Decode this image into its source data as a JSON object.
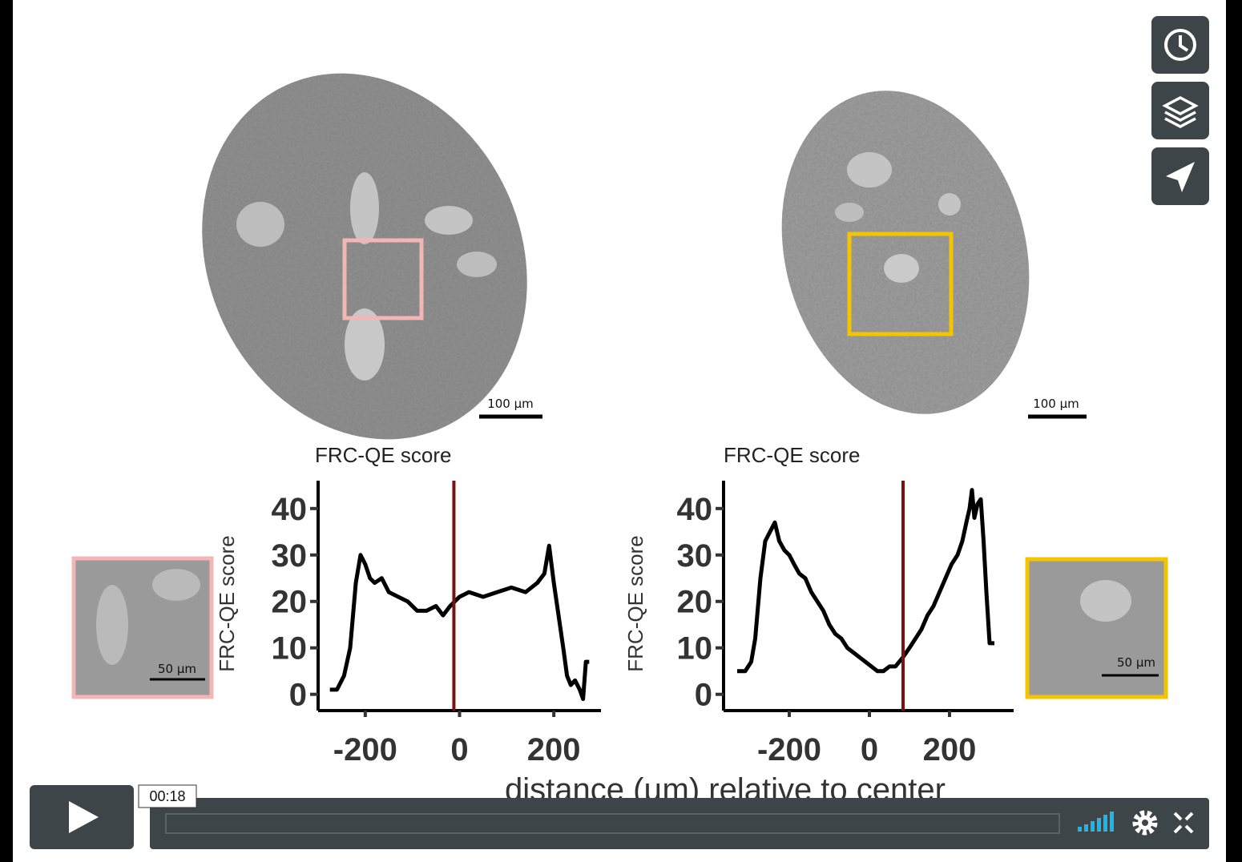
{
  "video": {
    "images": [
      {
        "scale_bar": "100 µm"
      },
      {
        "scale_bar": "100 µm"
      }
    ],
    "insets": [
      {
        "scale_bar": "50 µm"
      },
      {
        "scale_bar": "50 µm"
      }
    ],
    "x_label": "distance (µm) relative to center",
    "time": "00:18"
  },
  "chart_data": [
    {
      "type": "line",
      "title": "FRC-QE score",
      "y_label": "FRC-QE score",
      "x": [
        -275,
        -260,
        -245,
        -232,
        -220,
        -210,
        -200,
        -190,
        -180,
        -165,
        -150,
        -130,
        -110,
        -90,
        -70,
        -50,
        -35,
        -20,
        -10,
        0,
        20,
        50,
        80,
        110,
        140,
        165,
        180,
        190,
        200,
        210,
        220,
        228,
        236,
        245,
        255,
        262,
        268,
        275
      ],
      "series": [
        {
          "color": "#000000",
          "values": [
            1,
            1,
            4,
            10,
            24,
            30,
            28,
            25,
            24,
            25,
            22,
            21,
            20,
            18,
            18,
            19,
            17,
            19,
            20,
            21,
            22,
            21,
            22,
            23,
            22,
            24,
            26,
            32,
            24,
            17,
            10,
            4,
            2,
            3,
            1,
            -1,
            7,
            7
          ]
        }
      ],
      "vline": {
        "x": -12,
        "color": "#7a1010"
      },
      "xlim": [
        -300,
        300
      ],
      "ylim": [
        -3.5,
        46
      ],
      "xticks": [
        -200,
        0,
        200
      ],
      "yticks": [
        0,
        10,
        20,
        30,
        40
      ]
    },
    {
      "type": "line",
      "title": "FRC-QE score",
      "y_label": "FRC-QE score",
      "x": [
        -330,
        -310,
        -295,
        -285,
        -272,
        -260,
        -248,
        -236,
        -225,
        -212,
        -200,
        -188,
        -175,
        -160,
        -145,
        -130,
        -115,
        -100,
        -85,
        -70,
        -55,
        -40,
        -25,
        -10,
        5,
        20,
        35,
        50,
        65,
        84,
        100,
        115,
        130,
        145,
        160,
        175,
        190,
        205,
        220,
        232,
        242,
        250,
        256,
        262,
        270,
        278,
        285,
        292,
        300,
        312
      ],
      "series": [
        {
          "color": "#000000",
          "values": [
            5,
            5,
            7,
            12,
            25,
            33,
            35,
            37,
            33,
            31,
            30,
            28,
            26,
            25,
            22,
            20,
            18,
            15,
            13,
            12,
            10,
            9,
            8,
            7,
            6,
            5,
            5,
            6,
            6,
            8,
            10,
            12,
            14,
            17,
            19,
            22,
            25,
            28,
            30,
            33,
            37,
            40,
            44,
            38,
            41,
            42,
            33,
            22,
            11,
            11
          ]
        }
      ],
      "vline": {
        "x": 84,
        "color": "#7a1010"
      },
      "xlim": [
        -364,
        360
      ],
      "ylim": [
        -3.5,
        46
      ],
      "xticks": [
        -200,
        0,
        200
      ],
      "yticks": [
        0,
        10,
        20,
        30,
        40
      ]
    }
  ]
}
